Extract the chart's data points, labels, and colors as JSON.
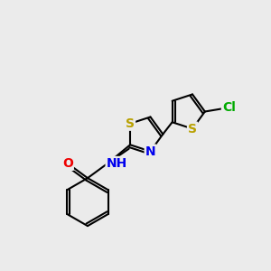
{
  "bg_color": "#ebebeb",
  "bond_color": "#000000",
  "bond_width": 1.5,
  "atom_colors": {
    "S": "#b8a000",
    "N": "#0000ee",
    "O": "#ee0000",
    "Cl": "#00aa00"
  },
  "font_size": 10
}
